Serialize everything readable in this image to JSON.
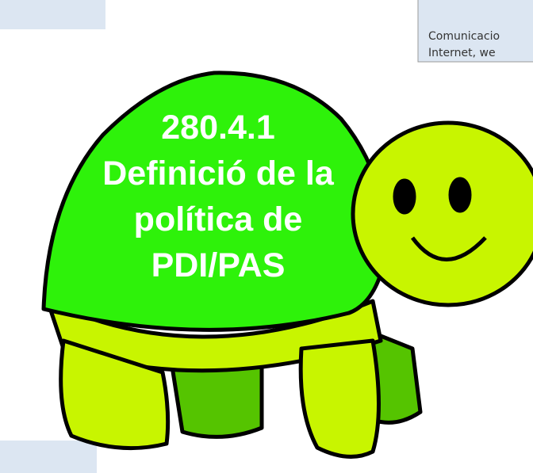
{
  "title": {
    "lines": [
      "280.4.1",
      "Definició de la",
      "política de",
      "PDI/PAS"
    ]
  },
  "note": {
    "lines": [
      "Comunicacio",
      "Internet, we"
    ]
  }
}
